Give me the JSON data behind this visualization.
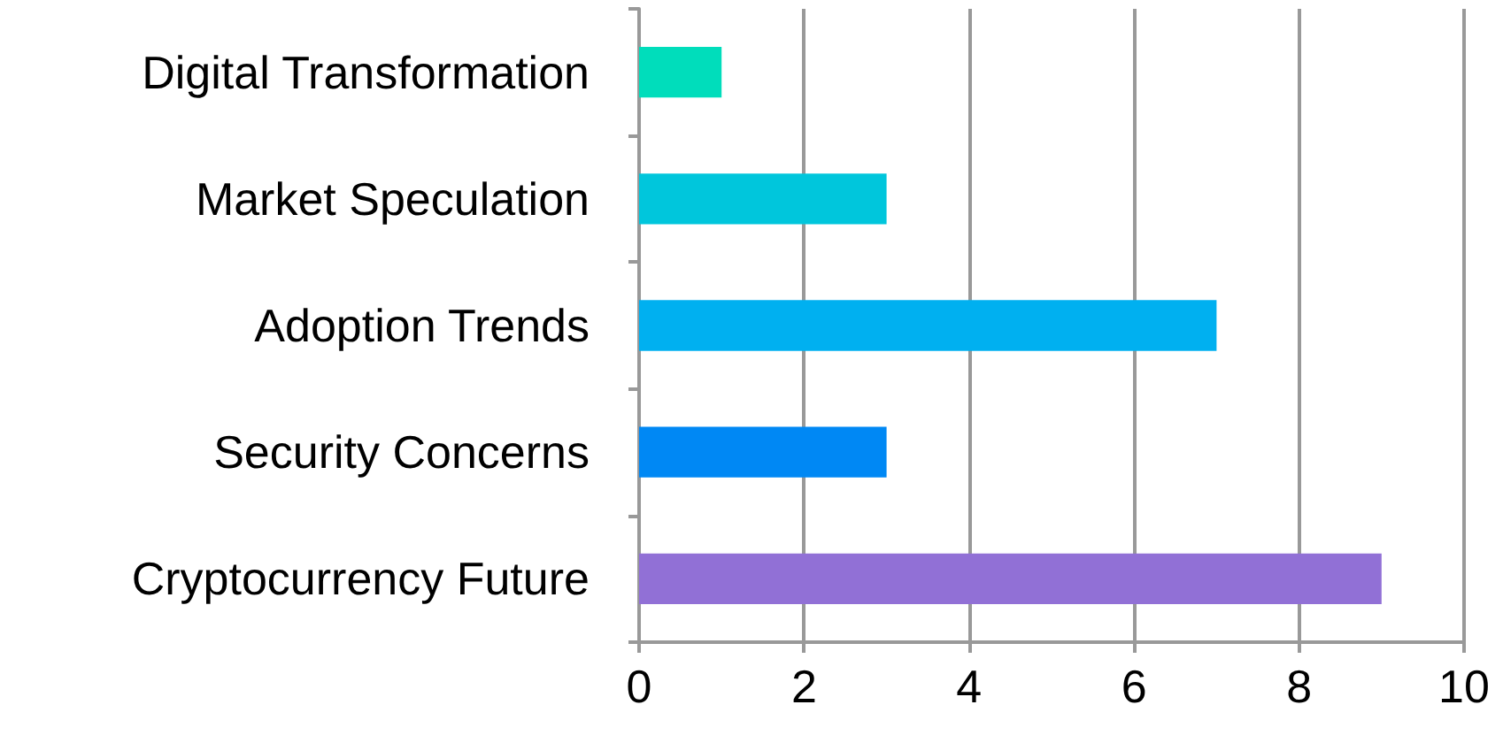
{
  "chart_data": {
    "type": "bar",
    "orientation": "horizontal",
    "categories": [
      "Digital Transformation",
      "Market Speculation",
      "Adoption Trends",
      "Security Concerns",
      "Cryptocurrency Future"
    ],
    "values": [
      1,
      3,
      7,
      3,
      9
    ],
    "colors": [
      "#00ddbb",
      "#00c6dc",
      "#00b0f0",
      "#0088f4",
      "#9170d6"
    ],
    "xlim": [
      0,
      10
    ],
    "xticks": [
      0,
      2,
      4,
      6,
      8,
      10
    ],
    "grid": "x"
  }
}
